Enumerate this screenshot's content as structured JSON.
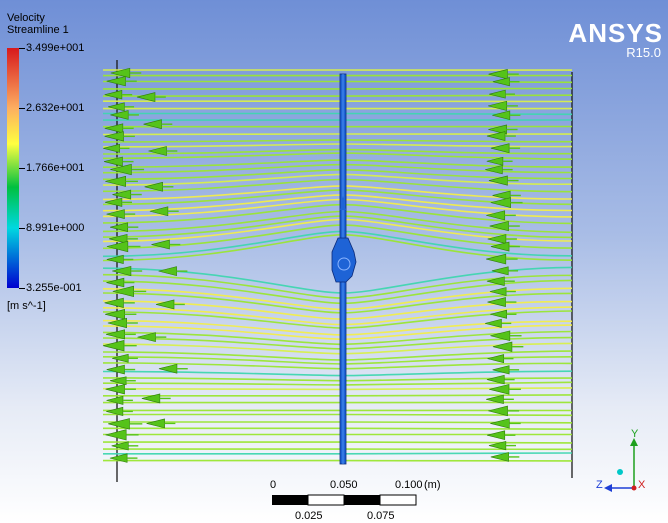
{
  "legend": {
    "title": "Velocity",
    "subtitle": "Streamline 1",
    "ticks": [
      "3.499e+001",
      "2.632e+001",
      "1.766e+001",
      "8.991e+000",
      "3.255e-001"
    ],
    "units": "[m s^-1]"
  },
  "logo": {
    "name": "ANSYS",
    "version": "R15.0"
  },
  "scale": {
    "top_labels": [
      "0",
      "0.050",
      "0.100"
    ],
    "bottom_labels": [
      "0.025",
      "0.075"
    ],
    "unit": "(m)"
  },
  "triad": {
    "x": "X",
    "y": "Y",
    "z": "Z"
  },
  "colors": {
    "streamline_main": "#9ae632",
    "streamline_light": "#d8f04a",
    "streamline_yellow": "#f2ee4a",
    "streamline_cyan": "#3fd6b0",
    "arrow_green": "#55c31a",
    "blade_blue": "#1e63d6"
  }
}
